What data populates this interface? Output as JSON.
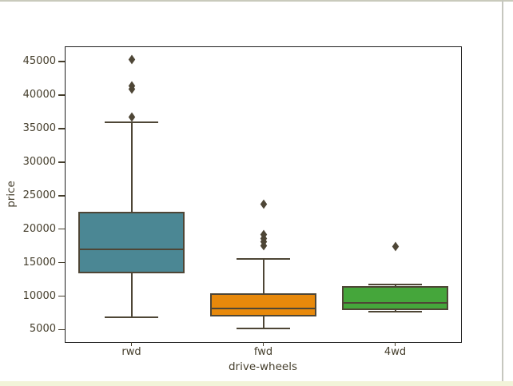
{
  "window": {
    "background": "#ffffff",
    "top_border_color": "#c9cabc",
    "right_border_color": "#c6c7bf",
    "bottom_strip_color": "#f2f4d9"
  },
  "chart_data": {
    "type": "box",
    "title": "",
    "xlabel": "drive-wheels",
    "ylabel": "price",
    "categories": [
      "rwd",
      "fwd",
      "4wd"
    ],
    "y_ticks": [
      5000,
      10000,
      15000,
      20000,
      25000,
      30000,
      35000,
      40000,
      45000
    ],
    "ylim": [
      3150,
      47150
    ],
    "grid": false,
    "legend": "none",
    "marker": "diamond",
    "line_color": "#4e4636",
    "text_color": "#453e2c",
    "spine_color": "#1f1f1f",
    "boxes": [
      {
        "category": "rwd",
        "fill": "#4b8794",
        "whisker_low": 6900,
        "q1": 13450,
        "median": 16950,
        "q3": 22600,
        "whisker_high": 36000,
        "outliers": [
          36800,
          40950,
          41480,
          45350
        ]
      },
      {
        "category": "fwd",
        "fill": "#e8890b",
        "whisker_low": 5200,
        "q1": 6960,
        "median": 8120,
        "q3": 10400,
        "whisker_high": 15500,
        "outliers": [
          17600,
          18150,
          18700,
          19250,
          23800
        ]
      },
      {
        "category": "4wd",
        "fill": "#45a63b",
        "whisker_low": 7700,
        "q1": 7900,
        "median": 9000,
        "q3": 11500,
        "whisker_high": 11700,
        "outliers": [
          17400
        ]
      }
    ]
  }
}
